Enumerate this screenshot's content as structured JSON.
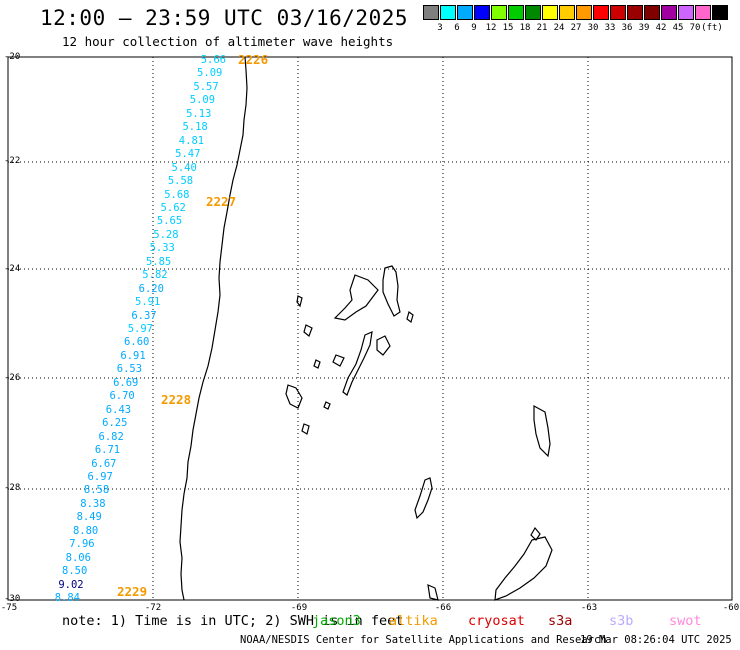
{
  "header": {
    "title": "12:00 — 23:59 UTC 03/16/2025",
    "subtitle": "12 hour collection of altimeter wave heights"
  },
  "legend": {
    "colors": [
      "#7f7f7f",
      "#00ffff",
      "#00aaff",
      "#0000ff",
      "#7fff00",
      "#00cc00",
      "#008800",
      "#ffff00",
      "#ffcc00",
      "#ff9900",
      "#ff0000",
      "#cc0000",
      "#990000",
      "#800000",
      "#a000a0",
      "#cc66ff",
      "#ff66cc",
      "#000000"
    ],
    "labels": [
      "3",
      "6",
      "9",
      "12",
      "15",
      "18",
      "21",
      "24",
      "27",
      "30",
      "33",
      "36",
      "39",
      "42",
      "45",
      "70"
    ],
    "unit": "(ft)"
  },
  "axes": {
    "lat_labels": [
      "-20",
      "-22",
      "-24",
      "-26",
      "-28",
      "-30"
    ],
    "lon_labels": [
      "-75",
      "-72",
      "-69",
      "-66",
      "-63",
      "-60"
    ]
  },
  "wave_heights": [
    {
      "value": "5.66",
      "color": "#00ccff"
    },
    {
      "value": "5.09",
      "color": "#00ccff"
    },
    {
      "value": "5.57",
      "color": "#00ccff"
    },
    {
      "value": "5.09",
      "color": "#00ccff"
    },
    {
      "value": "5.13",
      "color": "#00ccff"
    },
    {
      "value": "5.18",
      "color": "#00ccff"
    },
    {
      "value": "4.81",
      "color": "#00ccff"
    },
    {
      "value": "5.47",
      "color": "#00ccff"
    },
    {
      "value": "5.40",
      "color": "#00ccff"
    },
    {
      "value": "5.58",
      "color": "#00ccff"
    },
    {
      "value": "5.68",
      "color": "#00ccff"
    },
    {
      "value": "5.62",
      "color": "#00ccff"
    },
    {
      "value": "5.65",
      "color": "#00ccff"
    },
    {
      "value": "5.28",
      "color": "#00ccff"
    },
    {
      "value": "5.33",
      "color": "#00ccff"
    },
    {
      "value": "5.85",
      "color": "#00ccff"
    },
    {
      "value": "5.82",
      "color": "#00ccff"
    },
    {
      "value": "6.20",
      "color": "#00aaff"
    },
    {
      "value": "5.91",
      "color": "#00ccff"
    },
    {
      "value": "6.37",
      "color": "#00aaff"
    },
    {
      "value": "5.97",
      "color": "#00ccff"
    },
    {
      "value": "6.60",
      "color": "#00aaff"
    },
    {
      "value": "6.91",
      "color": "#00aaff"
    },
    {
      "value": "6.53",
      "color": "#00aaff"
    },
    {
      "value": "6.69",
      "color": "#00aaff"
    },
    {
      "value": "6.70",
      "color": "#00aaff"
    },
    {
      "value": "6.43",
      "color": "#00aaff"
    },
    {
      "value": "6.25",
      "color": "#00aaff"
    },
    {
      "value": "6.82",
      "color": "#00aaff"
    },
    {
      "value": "6.71",
      "color": "#00aaff"
    },
    {
      "value": "6.67",
      "color": "#00aaff"
    },
    {
      "value": "6.97",
      "color": "#00aaff"
    },
    {
      "value": "8.58",
      "color": "#00aaff"
    },
    {
      "value": "8.38",
      "color": "#00aaff"
    },
    {
      "value": "8.49",
      "color": "#00aaff"
    },
    {
      "value": "8.80",
      "color": "#00aaff"
    },
    {
      "value": "7.96",
      "color": "#00aaff"
    },
    {
      "value": "8.06",
      "color": "#00aaff"
    },
    {
      "value": "8.50",
      "color": "#00aaff"
    },
    {
      "value": "9.02",
      "color": "#000080"
    },
    {
      "value": "8.84",
      "color": "#00aaff"
    }
  ],
  "passes": [
    "2226",
    "2227",
    "2228",
    "2229"
  ],
  "note": {
    "prefix": "note: 1) Time is in UTC; 2) SWH is in feet",
    "sats": [
      {
        "name": "jason3",
        "color": "#00aa00"
      },
      {
        "name": "altika",
        "color": "#f49a00"
      },
      {
        "name": "cryosat",
        "color": "#dd0000"
      },
      {
        "name": "s3a",
        "color": "#990000"
      },
      {
        "name": "s3b",
        "color": "#bbaaff"
      },
      {
        "name": "swot",
        "color": "#ff88dd"
      }
    ]
  },
  "footer": {
    "credit": "NOAA/NESDIS Center for Satellite Applications and Research",
    "timestamp": "19 Mar 08:26:04 UTC 2025"
  }
}
